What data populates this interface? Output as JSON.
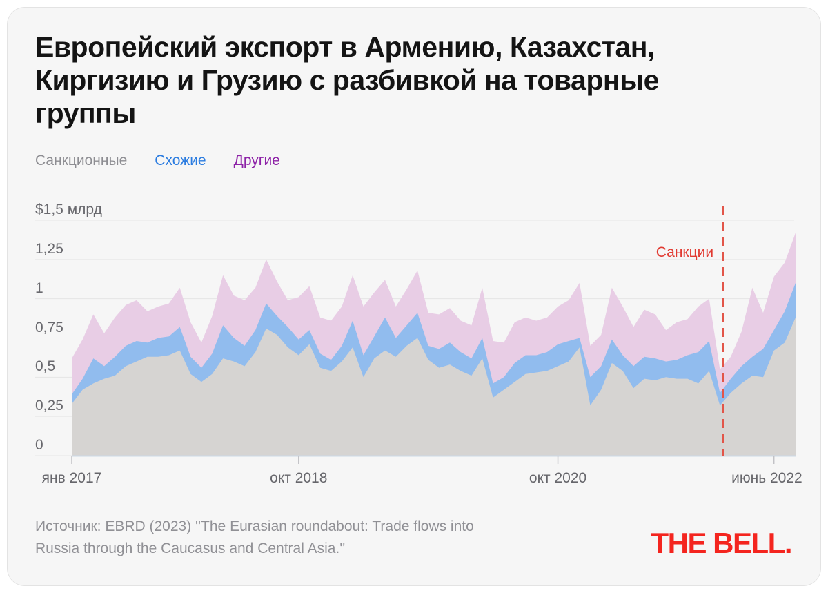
{
  "header": {
    "title_lines": [
      "Европейский экспорт в Армению, Казахстан,",
      "Киргизию и Грузию с разбивкой на товарные",
      "группы"
    ]
  },
  "legend": {
    "items": [
      {
        "label": "Санкционные",
        "color": "#8d8d92"
      },
      {
        "label": "Схожие",
        "color": "#2b7ce0"
      },
      {
        "label": "Другие",
        "color": "#8d22a7"
      }
    ]
  },
  "chart_data": {
    "type": "area",
    "stacked": true,
    "unit": "$ млрд",
    "ylim": [
      0,
      1.5
    ],
    "grid": true,
    "x_range_note": "monthly points, янв 2017 — июнь 2022 (+2 мес)",
    "x_tick_labels": [
      {
        "index": 0,
        "label": "янв 2017"
      },
      {
        "index": 21,
        "label": "окт 2018"
      },
      {
        "index": 45,
        "label": "окт 2020"
      },
      {
        "index": 65,
        "label": "июнь 2022"
      }
    ],
    "y_ticks": [
      {
        "value": 0,
        "label": "0"
      },
      {
        "value": 0.25,
        "label": "0,25"
      },
      {
        "value": 0.5,
        "label": "0,5"
      },
      {
        "value": 0.75,
        "label": "0,75"
      },
      {
        "value": 1,
        "label": "1"
      },
      {
        "value": 1.25,
        "label": "1,25"
      },
      {
        "value": 1.5,
        "label": "$1,5 млрд"
      }
    ],
    "series": [
      {
        "name": "Санкционные",
        "fill": "#d6d4d2",
        "values": [
          0.33,
          0.42,
          0.46,
          0.49,
          0.51,
          0.57,
          0.6,
          0.63,
          0.63,
          0.64,
          0.67,
          0.52,
          0.47,
          0.52,
          0.62,
          0.6,
          0.57,
          0.66,
          0.81,
          0.77,
          0.69,
          0.64,
          0.71,
          0.56,
          0.54,
          0.6,
          0.69,
          0.5,
          0.62,
          0.67,
          0.63,
          0.7,
          0.75,
          0.61,
          0.56,
          0.58,
          0.54,
          0.51,
          0.62,
          0.37,
          0.42,
          0.47,
          0.52,
          0.53,
          0.54,
          0.57,
          0.6,
          0.69,
          0.32,
          0.42,
          0.59,
          0.54,
          0.43,
          0.49,
          0.48,
          0.5,
          0.49,
          0.49,
          0.46,
          0.54,
          0.32,
          0.4,
          0.46,
          0.51,
          0.5,
          0.67,
          0.72,
          0.88
        ]
      },
      {
        "name": "Схожие",
        "fill": "#91bcee",
        "values": [
          0.06,
          0.07,
          0.16,
          0.08,
          0.12,
          0.13,
          0.13,
          0.09,
          0.12,
          0.12,
          0.15,
          0.11,
          0.09,
          0.13,
          0.21,
          0.15,
          0.13,
          0.14,
          0.16,
          0.12,
          0.13,
          0.1,
          0.09,
          0.09,
          0.07,
          0.1,
          0.17,
          0.14,
          0.14,
          0.21,
          0.12,
          0.13,
          0.16,
          0.09,
          0.12,
          0.14,
          0.12,
          0.11,
          0.13,
          0.09,
          0.08,
          0.12,
          0.12,
          0.11,
          0.12,
          0.14,
          0.13,
          0.06,
          0.18,
          0.15,
          0.15,
          0.1,
          0.14,
          0.14,
          0.14,
          0.1,
          0.12,
          0.15,
          0.2,
          0.19,
          0.08,
          0.09,
          0.11,
          0.12,
          0.18,
          0.13,
          0.2,
          0.22
        ]
      },
      {
        "name": "Другие",
        "fill": "#e8cde5",
        "values": [
          0.23,
          0.25,
          0.28,
          0.21,
          0.25,
          0.26,
          0.26,
          0.2,
          0.2,
          0.21,
          0.25,
          0.22,
          0.16,
          0.24,
          0.32,
          0.27,
          0.29,
          0.27,
          0.28,
          0.22,
          0.17,
          0.27,
          0.28,
          0.23,
          0.25,
          0.25,
          0.29,
          0.31,
          0.28,
          0.24,
          0.2,
          0.23,
          0.27,
          0.21,
          0.22,
          0.22,
          0.2,
          0.21,
          0.32,
          0.27,
          0.22,
          0.26,
          0.24,
          0.22,
          0.22,
          0.24,
          0.26,
          0.35,
          0.2,
          0.2,
          0.33,
          0.31,
          0.25,
          0.3,
          0.28,
          0.2,
          0.24,
          0.23,
          0.29,
          0.27,
          0.15,
          0.14,
          0.22,
          0.44,
          0.23,
          0.34,
          0.31,
          0.32
        ]
      }
    ],
    "annotation": {
      "label": "Санкции",
      "x_index": 60.3,
      "line_color": "#e25549",
      "label_color": "#e13a31"
    }
  },
  "footer": {
    "source": "Источник: EBRD (2023) ''The Eurasian roundabout: Trade flows into Russia through the Caucasus and Central Asia.''",
    "logo": "THE BELL.",
    "logo_color": "#f4251f"
  }
}
